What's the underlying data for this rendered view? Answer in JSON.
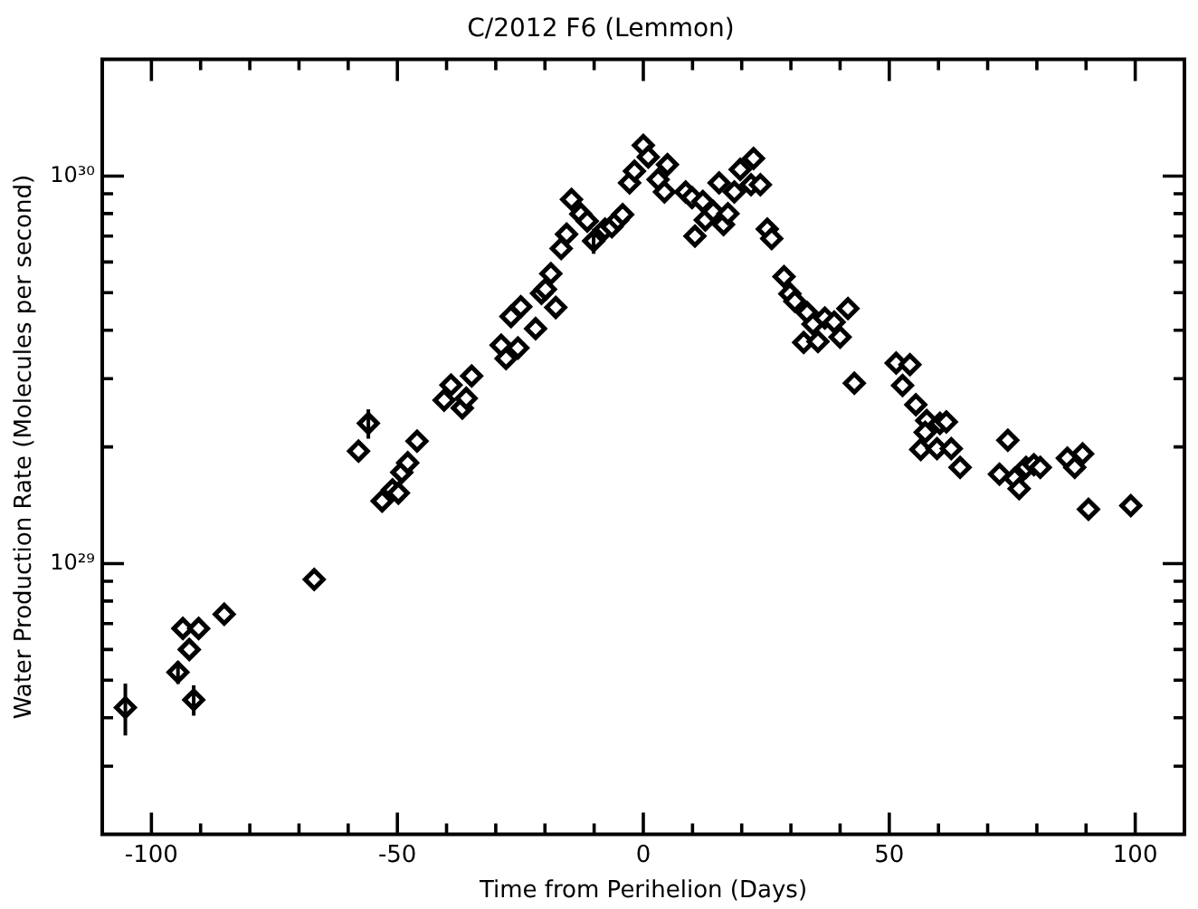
{
  "chart_data": {
    "type": "scatter",
    "title": "C/2012 F6 (Lemmon)",
    "xlabel": "Time from Perihelion (Days)",
    "ylabel": "Water Production Rate (Molecules per second)",
    "log": "y",
    "grid": false,
    "legend": false,
    "marker": "diamond",
    "xlim": [
      -110,
      110
    ],
    "ylim": [
      2e+28,
      2e+30
    ],
    "xticks": [
      -100,
      {
        "value": -90,
        "label": null
      },
      {
        "value": -80,
        "label": null
      },
      {
        "value": -70,
        "label": null
      },
      {
        "value": -60,
        "label": null
      },
      -50,
      {
        "value": -40,
        "label": null
      },
      {
        "value": -30,
        "label": null
      },
      {
        "value": -20,
        "label": null
      },
      {
        "value": -10,
        "label": null
      },
      0,
      {
        "value": 10,
        "label": null
      },
      {
        "value": 20,
        "label": null
      },
      {
        "value": 30,
        "label": null
      },
      {
        "value": 40,
        "label": null
      },
      50,
      {
        "value": 60,
        "label": null
      },
      {
        "value": 70,
        "label": null
      },
      {
        "value": 80,
        "label": null
      },
      {
        "value": 90,
        "label": null
      },
      100
    ],
    "yticks": [
      {
        "value": 3e+28,
        "label": null
      },
      {
        "value": 4e+28,
        "label": null
      },
      {
        "value": 5e+28,
        "label": null
      },
      {
        "value": 6e+28,
        "label": null
      },
      {
        "value": 7e+28,
        "label": null
      },
      {
        "value": 8e+28,
        "label": null
      },
      {
        "value": 9e+28,
        "label": null
      },
      {
        "value": 1e+29,
        "label": "10²⁹"
      },
      {
        "value": 2e+29,
        "label": null
      },
      {
        "value": 3e+29,
        "label": null
      },
      {
        "value": 4e+29,
        "label": null
      },
      {
        "value": 5e+29,
        "label": null
      },
      {
        "value": 6e+29,
        "label": null
      },
      {
        "value": 7e+29,
        "label": null
      },
      {
        "value": 8e+29,
        "label": null
      },
      {
        "value": 9e+29,
        "label": null
      },
      {
        "value": 1e+30,
        "label": "10³⁰"
      }
    ],
    "series": [
      {
        "color": "#000000",
        "x": [
          -105.3,
          -94.6,
          -93.6,
          -92.3,
          -91.4,
          -90.4,
          -85.2,
          -66.9,
          -57.9,
          -55.9,
          -53.1,
          -51.0,
          -49.8,
          -49.1,
          -47.9,
          -46.0,
          -40.5,
          -39.1,
          -36.8,
          -36.0,
          -34.9,
          -28.9,
          -27.9,
          -25.5,
          -26.9,
          -24.9,
          -21.9,
          -20.7,
          -19.9,
          -18.8,
          -17.8,
          -16.7,
          -15.6,
          -14.6,
          -12.7,
          -11.4,
          -10.1,
          -7.8,
          -6.4,
          -5.2,
          -4.2,
          -2.8,
          -1.8,
          0,
          1.0,
          3.0,
          4.9,
          4.3,
          8.6,
          9.9,
          12.1,
          10.5,
          12.6,
          14.2,
          15.4,
          16.3,
          17.2,
          18.5,
          19.7,
          22.4,
          21.9,
          23.8,
          25.2,
          26.1,
          28.6,
          29.8,
          30.8,
          33.3,
          34.5,
          32.6,
          35.5,
          36.9,
          38.8,
          40.0,
          41.6,
          42.9,
          51.4,
          54.2,
          52.7,
          55.4,
          57.6,
          57.3,
          60.3,
          61.6,
          56.4,
          59.7,
          62.6,
          64.4,
          74.1,
          72.4,
          75.5,
          76.4,
          77.8,
          79.4,
          80.7,
          86.2,
          89.3,
          87.7,
          90.5,
          99.1
        ],
        "values": [
          4.25e+28,
          5.24e+28,
          6.8e+28,
          6e+28,
          4.45e+28,
          6.8e+28,
          7.4e+28,
          9.1e+28,
          1.95e+29,
          2.3e+29,
          1.45e+29,
          1.55e+29,
          1.52e+29,
          1.72e+29,
          1.82e+29,
          2.07e+29,
          2.64e+29,
          2.89e+29,
          2.52e+29,
          2.67e+29,
          3.05e+29,
          3.66e+29,
          3.38e+29,
          3.6e+29,
          4.34e+29,
          4.6e+29,
          4.04e+29,
          4.98e+29,
          5.1e+29,
          5.6e+29,
          4.58e+29,
          6.5e+29,
          7.08e+29,
          8.7e+29,
          7.98e+29,
          7.65e+29,
          6.8e+29,
          7.3e+29,
          7.4e+29,
          7.7e+29,
          7.95e+29,
          9.6e+29,
          1.03e+30,
          1.2e+30,
          1.12e+30,
          9.8e+29,
          1.07e+30,
          9.1e+29,
          9.1e+29,
          8.8e+29,
          8.6e+29,
          7e+29,
          7.7e+29,
          8.1e+29,
          9.6e+29,
          7.5e+29,
          8e+29,
          9.1e+29,
          1.04e+30,
          1.11e+30,
          9.5e+29,
          9.5e+29,
          7.3e+29,
          6.9e+29,
          5.5e+29,
          4.97e+29,
          4.75e+29,
          4.44e+29,
          4.15e+29,
          3.72e+29,
          3.74e+29,
          4.3e+29,
          4.2e+29,
          3.84e+29,
          4.55e+29,
          2.92e+29,
          3.29e+29,
          3.26e+29,
          2.88e+29,
          2.57e+29,
          2.34e+29,
          2.18e+29,
          2.3e+29,
          2.32e+29,
          1.97e+29,
          1.98e+29,
          1.98e+29,
          1.77e+29,
          2.08e+29,
          1.7e+29,
          1.66e+29,
          1.56e+29,
          1.77e+29,
          1.8e+29,
          1.77e+29,
          1.87e+29,
          1.92e+29,
          1.77e+29,
          1.38e+29,
          1.41e+29
        ],
        "errors": [
          6.5e+27,
          3.5e+27,
          null,
          null,
          4e+27,
          null,
          null,
          null,
          null,
          2e+28,
          null,
          null,
          null,
          null,
          null,
          null,
          null,
          null,
          null,
          null,
          null,
          null,
          null,
          null,
          null,
          null,
          null,
          null,
          null,
          null,
          null,
          null,
          null,
          null,
          null,
          null,
          5e+28,
          null,
          null,
          null,
          null,
          null,
          null,
          null,
          null,
          null,
          null,
          null,
          null,
          null,
          null,
          null,
          null,
          null,
          null,
          null,
          null,
          null,
          null,
          null,
          null,
          null,
          null,
          null,
          null,
          null,
          null,
          null,
          null,
          null,
          null,
          null,
          null,
          null,
          null,
          null,
          null,
          null,
          null,
          null,
          null,
          null,
          null,
          null,
          null,
          null,
          null,
          null,
          null,
          null,
          null,
          null,
          null,
          null,
          null,
          null,
          null,
          null,
          null,
          null
        ]
      }
    ]
  }
}
